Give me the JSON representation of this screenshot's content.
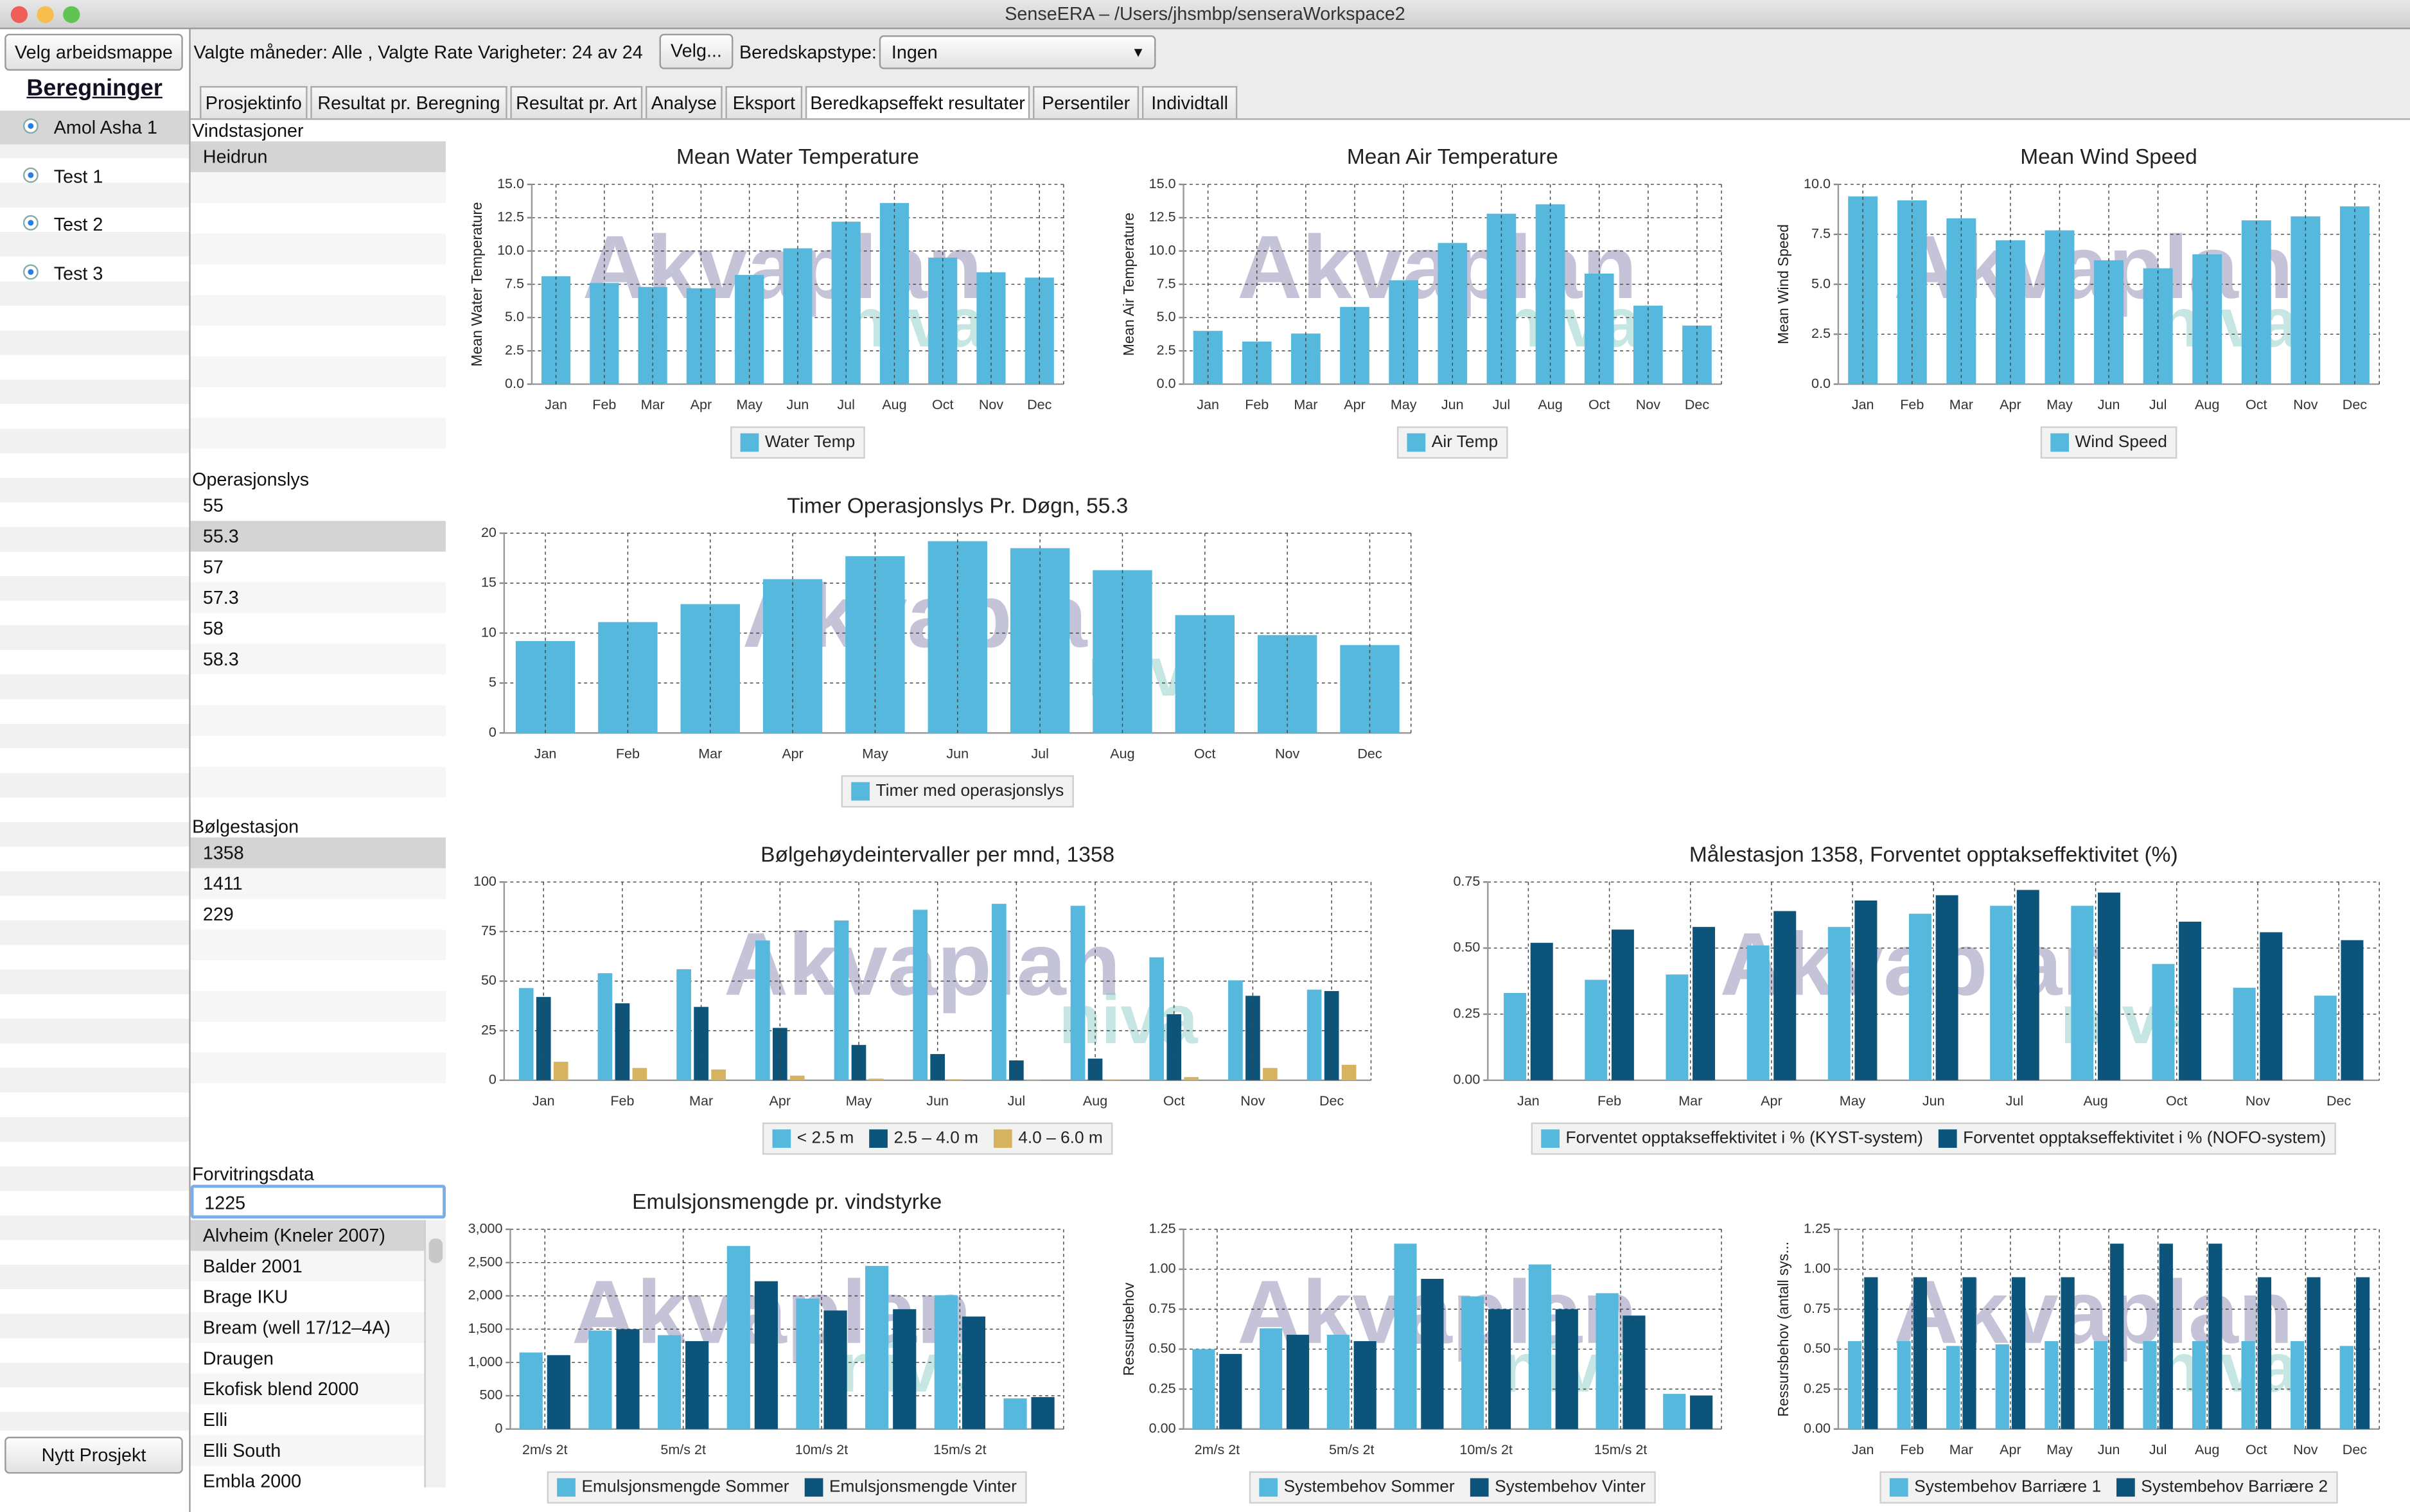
{
  "window_title": "SenseERA – /Users/jhsmbp/senseraWorkspace2",
  "sidebar": {
    "workspace_button": "Velg arbeidsmappe",
    "heading": "Beregninger",
    "projects": [
      "Amol Asha 1",
      "Test 1",
      "Test 2",
      "Test 3"
    ],
    "selected": 0,
    "new_project": "Nytt Prosjekt"
  },
  "toolbar": {
    "selection_text": "Valgte måneder: Alle , Valgte Rate Varigheter:  24 av 24",
    "choose_button": "Velg...",
    "type_label": "Beredskapstype:",
    "type_value": "Ingen"
  },
  "tabs": [
    "Prosjektinfo",
    "Resultat pr. Beregning",
    "Resultat pr. Art",
    "Analyse",
    "Eksport",
    "Beredkapseffekt resultater",
    "Persentiler",
    "Individtall"
  ],
  "active_tab": 5,
  "lists": [
    {
      "label": "Vindstasjoner",
      "items": [
        "Heidrun"
      ],
      "selected": 0
    },
    {
      "label": "Operasjonslys",
      "items": [
        "55",
        "55.3",
        "57",
        "57.3",
        "58",
        "58.3"
      ],
      "selected": 1
    },
    {
      "label": "Bølgestasjon",
      "items": [
        "1358",
        "1411",
        "229"
      ],
      "selected": 0
    }
  ],
  "weathering": {
    "label": "Forvitringsdata",
    "input": "1225",
    "items": [
      "Alvheim (Kneler 2007)",
      "Balder 2001",
      "Brage IKU",
      "Bream (well 17/12–4A)",
      "Draugen",
      "Ekofisk blend 2000",
      "Elli",
      "Elli South",
      "Embla 2000"
    ],
    "selected": 0
  },
  "watermark": [
    "Akvaplan",
    "niva"
  ],
  "chart_data": [
    {
      "type": "bar",
      "title": "Mean Water Temperature",
      "ylabel": "Mean Water Temperature",
      "categories": [
        "Jan",
        "Feb",
        "Mar",
        "Apr",
        "May",
        "Jun",
        "Jul",
        "Aug",
        "Oct",
        "Nov",
        "Dec"
      ],
      "series": [
        {
          "name": "Water Temp",
          "color": "#56b8dc",
          "values": [
            8.1,
            7.6,
            7.3,
            7.2,
            8.2,
            10.2,
            12.2,
            13.6,
            9.5,
            8.4,
            8.0
          ]
        }
      ],
      "ylim": [
        0,
        15
      ],
      "yticks": [
        {
          "value": 0,
          "label": "0.0"
        },
        {
          "value": 2.5,
          "label": "2.5"
        },
        {
          "value": 5,
          "label": "5.0"
        },
        {
          "value": 7.5,
          "label": "7.5"
        },
        {
          "value": 10,
          "label": "10.0"
        },
        {
          "value": 12.5,
          "label": "12.5"
        },
        {
          "value": 15,
          "label": "15.0"
        }
      ],
      "grid": true
    },
    {
      "type": "bar",
      "title": "Mean Air Temperature",
      "ylabel": "Mean Air Temperature",
      "categories": [
        "Jan",
        "Feb",
        "Mar",
        "Apr",
        "May",
        "Jun",
        "Jul",
        "Aug",
        "Oct",
        "Nov",
        "Dec"
      ],
      "series": [
        {
          "name": "Air Temp",
          "color": "#56b8dc",
          "values": [
            4.0,
            3.2,
            3.8,
            5.8,
            7.8,
            10.6,
            12.8,
            13.5,
            8.3,
            5.9,
            4.4
          ]
        }
      ],
      "ylim": [
        0,
        15
      ],
      "yticks": [
        {
          "value": 0,
          "label": "0.0"
        },
        {
          "value": 2.5,
          "label": "2.5"
        },
        {
          "value": 5,
          "label": "5.0"
        },
        {
          "value": 7.5,
          "label": "7.5"
        },
        {
          "value": 10,
          "label": "10.0"
        },
        {
          "value": 12.5,
          "label": "12.5"
        },
        {
          "value": 15,
          "label": "15.0"
        }
      ],
      "grid": true
    },
    {
      "type": "bar",
      "title": "Mean Wind Speed",
      "ylabel": "Mean Wind Speed",
      "categories": [
        "Jan",
        "Feb",
        "Mar",
        "Apr",
        "May",
        "Jun",
        "Jul",
        "Aug",
        "Oct",
        "Nov",
        "Dec"
      ],
      "series": [
        {
          "name": "Wind Speed",
          "color": "#56b8dc",
          "values": [
            9.4,
            9.2,
            8.3,
            7.2,
            7.7,
            6.2,
            5.8,
            6.5,
            8.2,
            8.4,
            8.9
          ]
        }
      ],
      "ylim": [
        0,
        10
      ],
      "yticks": [
        {
          "value": 0,
          "label": "0.0"
        },
        {
          "value": 2.5,
          "label": "2.5"
        },
        {
          "value": 5,
          "label": "5.0"
        },
        {
          "value": 7.5,
          "label": "7.5"
        },
        {
          "value": 10,
          "label": "10.0"
        }
      ],
      "grid": true
    },
    {
      "type": "bar",
      "title": "Timer Operasjonslys Pr. Døgn, 55.3",
      "categories": [
        "Jan",
        "Feb",
        "Mar",
        "Apr",
        "May",
        "Jun",
        "Jul",
        "Aug",
        "Oct",
        "Nov",
        "Dec"
      ],
      "series": [
        {
          "name": "Timer med operasjonslys",
          "color": "#56b8dc",
          "values": [
            9.2,
            11.1,
            12.9,
            15.4,
            17.7,
            19.2,
            18.5,
            16.3,
            11.8,
            9.8,
            8.8
          ]
        }
      ],
      "ylim": [
        0,
        20
      ],
      "yticks": [
        0,
        5,
        10,
        15,
        20
      ],
      "grid": true
    },
    {
      "type": "bar",
      "title": "Bølgehøydeintervaller per mnd, 1358",
      "categories": [
        "Jan",
        "Feb",
        "Mar",
        "Apr",
        "May",
        "Jun",
        "Jul",
        "Aug",
        "Oct",
        "Nov",
        "Dec"
      ],
      "series": [
        {
          "name": "< 2.5 m",
          "color": "#56b8dc",
          "values": [
            46.5,
            54,
            56,
            70.5,
            80.6,
            86,
            89,
            88,
            62,
            50.4,
            45.7
          ]
        },
        {
          "name": "2.5 – 4.0 m",
          "color": "#0c5479",
          "values": [
            42,
            38.8,
            37,
            26.4,
            17.8,
            13.2,
            10,
            10.9,
            33.3,
            42.6,
            45
          ]
        },
        {
          "name": "4.0 – 6.0 m",
          "color": "#d6b35e",
          "values": [
            9.3,
            6.2,
            5.4,
            2.3,
            0.8,
            0.5,
            0.3,
            0.4,
            1.6,
            6.2,
            7.8
          ]
        }
      ],
      "ylim": [
        0,
        100
      ],
      "yticks": [
        0,
        25,
        50,
        75,
        100
      ],
      "grid": true
    },
    {
      "type": "bar",
      "title": "Målestasjon 1358, Forventet opptakseffektivitet (%)",
      "categories": [
        "Jan",
        "Feb",
        "Mar",
        "Apr",
        "May",
        "Jun",
        "Jul",
        "Aug",
        "Oct",
        "Nov",
        "Dec"
      ],
      "series": [
        {
          "name": "Forventet opptakseffektivitet i % (KYST-system)",
          "color": "#56b8dc",
          "values": [
            0.33,
            0.38,
            0.4,
            0.51,
            0.58,
            0.63,
            0.66,
            0.66,
            0.44,
            0.35,
            0.32
          ]
        },
        {
          "name": "Forventet opptakseffektivitet i % (NOFO-system)",
          "color": "#0c5479",
          "values": [
            0.52,
            0.57,
            0.58,
            0.64,
            0.68,
            0.7,
            0.72,
            0.71,
            0.6,
            0.56,
            0.53
          ]
        }
      ],
      "ylim": [
        0,
        0.75
      ],
      "yticks": [
        {
          "value": 0,
          "label": "0.00"
        },
        {
          "value": 0.25,
          "label": "0.25"
        },
        {
          "value": 0.5,
          "label": "0.50"
        },
        {
          "value": 0.75,
          "label": "0.75"
        }
      ],
      "grid": true
    },
    {
      "type": "bar",
      "title": "Emulsjonsmengde pr. vindstyrke",
      "categories": [
        "2m/s 2t",
        null,
        "5m/s 2t",
        null,
        "10m/s 2t",
        null,
        "15m/s 2t",
        null
      ],
      "series": [
        {
          "name": "Emulsjonsmengde Sommer",
          "color": "#56b8dc",
          "values": [
            1150,
            1480,
            1410,
            2750,
            1960,
            2450,
            2010,
            460
          ]
        },
        {
          "name": "Emulsjonsmengde Vinter",
          "color": "#0c5479",
          "values": [
            1110,
            1500,
            1320,
            2220,
            1780,
            1800,
            1690,
            480
          ]
        }
      ],
      "ylim": [
        0,
        3000
      ],
      "yticks": [
        0,
        500,
        {
          "value": 1000,
          "label": "1,000"
        },
        {
          "value": 1500,
          "label": "1,500"
        },
        {
          "value": 2000,
          "label": "2,000"
        },
        {
          "value": 2500,
          "label": "2,500"
        },
        {
          "value": 3000,
          "label": "3,000"
        }
      ],
      "grid": true
    },
    {
      "type": "bar",
      "ylabel": "Ressursbehov",
      "categories": [
        "2m/s 2t",
        null,
        "5m/s 2t",
        null,
        "10m/s 2t",
        null,
        "15m/s 2t",
        null
      ],
      "series": [
        {
          "name": "Systembehov Sommer",
          "color": "#56b8dc",
          "values": [
            0.5,
            0.63,
            0.59,
            1.16,
            0.83,
            1.03,
            0.85,
            0.22
          ]
        },
        {
          "name": "Systembehov Vinter",
          "color": "#0c5479",
          "values": [
            0.47,
            0.59,
            0.55,
            0.94,
            0.75,
            0.75,
            0.71,
            0.21
          ]
        }
      ],
      "ylim": [
        0,
        1.25
      ],
      "yticks": [
        {
          "value": 0,
          "label": "0.00"
        },
        {
          "value": 0.25,
          "label": "0.25"
        },
        {
          "value": 0.5,
          "label": "0.50"
        },
        {
          "value": 0.75,
          "label": "0.75"
        },
        {
          "value": 1,
          "label": "1.00"
        },
        {
          "value": 1.25,
          "label": "1.25"
        }
      ],
      "grid": true
    },
    {
      "type": "bar",
      "ylabel": "Ressursbehov (antall sys...",
      "categories": [
        "Jan",
        "Feb",
        "Mar",
        "Apr",
        "May",
        "Jun",
        "Jul",
        "Aug",
        "Oct",
        "Nov",
        "Dec"
      ],
      "series": [
        {
          "name": "Systembehov Barriære 1",
          "color": "#56b8dc",
          "values": [
            0.55,
            0.55,
            0.52,
            0.53,
            0.55,
            0.55,
            0.55,
            0.55,
            0.55,
            0.55,
            0.52
          ]
        },
        {
          "name": "Systembehov Barriære 2",
          "color": "#0c5479",
          "values": [
            0.95,
            0.95,
            0.95,
            0.95,
            0.95,
            1.16,
            1.16,
            1.16,
            0.95,
            0.95,
            0.95
          ]
        }
      ],
      "ylim": [
        0,
        1.25
      ],
      "yticks": [
        {
          "value": 0,
          "label": "0.00"
        },
        {
          "value": 0.25,
          "label": "0.25"
        },
        {
          "value": 0.5,
          "label": "0.50"
        },
        {
          "value": 0.75,
          "label": "0.75"
        },
        {
          "value": 1,
          "label": "1.00"
        },
        {
          "value": 1.25,
          "label": "1.25"
        }
      ],
      "grid": true
    }
  ]
}
